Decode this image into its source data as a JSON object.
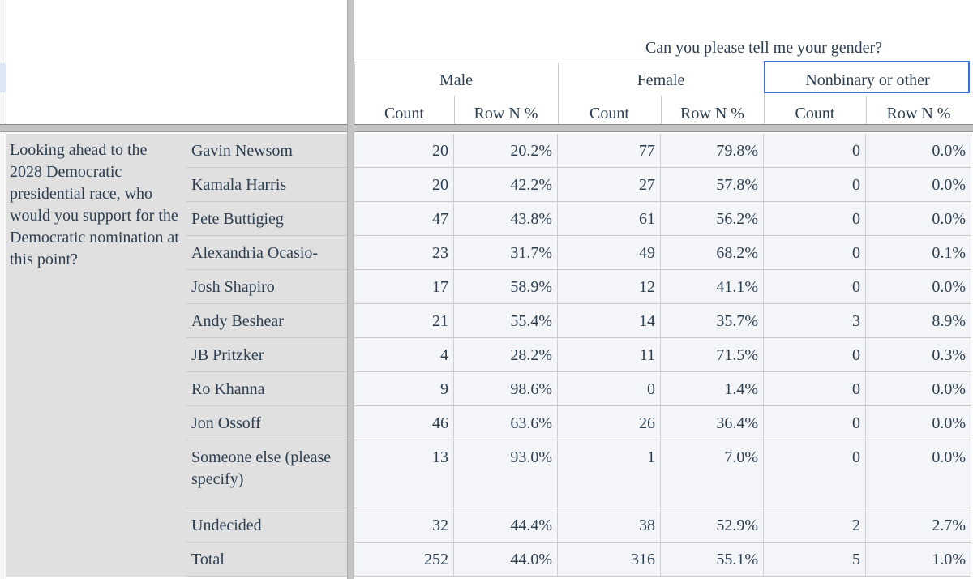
{
  "header": {
    "title": "Can you please tell me your gender?",
    "groups": [
      "Male",
      "Female",
      "Nonbinary or other"
    ],
    "columns": [
      "Count",
      "Row N %",
      "Count",
      "Row N %",
      "Count",
      "Row N %"
    ]
  },
  "table": {
    "question": "Looking ahead to the 2028 Democratic presidential race, who would you support for the Democratic nomination at this point?",
    "rows": [
      {
        "label": "Gavin Newsom",
        "cells": [
          20,
          "20.2%",
          77,
          "79.8%",
          0,
          "0.0%"
        ]
      },
      {
        "label": "Kamala Harris",
        "cells": [
          20,
          "42.2%",
          27,
          "57.8%",
          0,
          "0.0%"
        ]
      },
      {
        "label": "Pete Buttigieg",
        "cells": [
          47,
          "43.8%",
          61,
          "56.2%",
          0,
          "0.0%"
        ]
      },
      {
        "label": "Alexandria Ocasio-Cortez",
        "cells": [
          23,
          "31.7%",
          49,
          "68.2%",
          0,
          "0.1%"
        ]
      },
      {
        "label": "Josh Shapiro",
        "cells": [
          17,
          "58.9%",
          12,
          "41.1%",
          0,
          "0.0%"
        ]
      },
      {
        "label": "Andy Beshear",
        "cells": [
          21,
          "55.4%",
          14,
          "35.7%",
          3,
          "8.9%"
        ]
      },
      {
        "label": "JB Pritzker",
        "cells": [
          4,
          "28.2%",
          11,
          "71.5%",
          0,
          "0.3%"
        ]
      },
      {
        "label": "Ro Khanna",
        "cells": [
          9,
          "98.6%",
          0,
          "1.4%",
          0,
          "0.0%"
        ]
      },
      {
        "label": "Jon Ossoff",
        "cells": [
          46,
          "63.6%",
          26,
          "36.4%",
          0,
          "0.0%"
        ]
      },
      {
        "label": "Someone else (please specify)",
        "cells": [
          13,
          "93.0%",
          1,
          "7.0%",
          0,
          "0.0%"
        ]
      },
      {
        "label": "Undecided",
        "cells": [
          32,
          "44.4%",
          38,
          "52.9%",
          2,
          "2.7%"
        ]
      },
      {
        "label": "Total",
        "cells": [
          252,
          "44.0%",
          316,
          "55.1%",
          5,
          "1.0%"
        ]
      }
    ]
  }
}
